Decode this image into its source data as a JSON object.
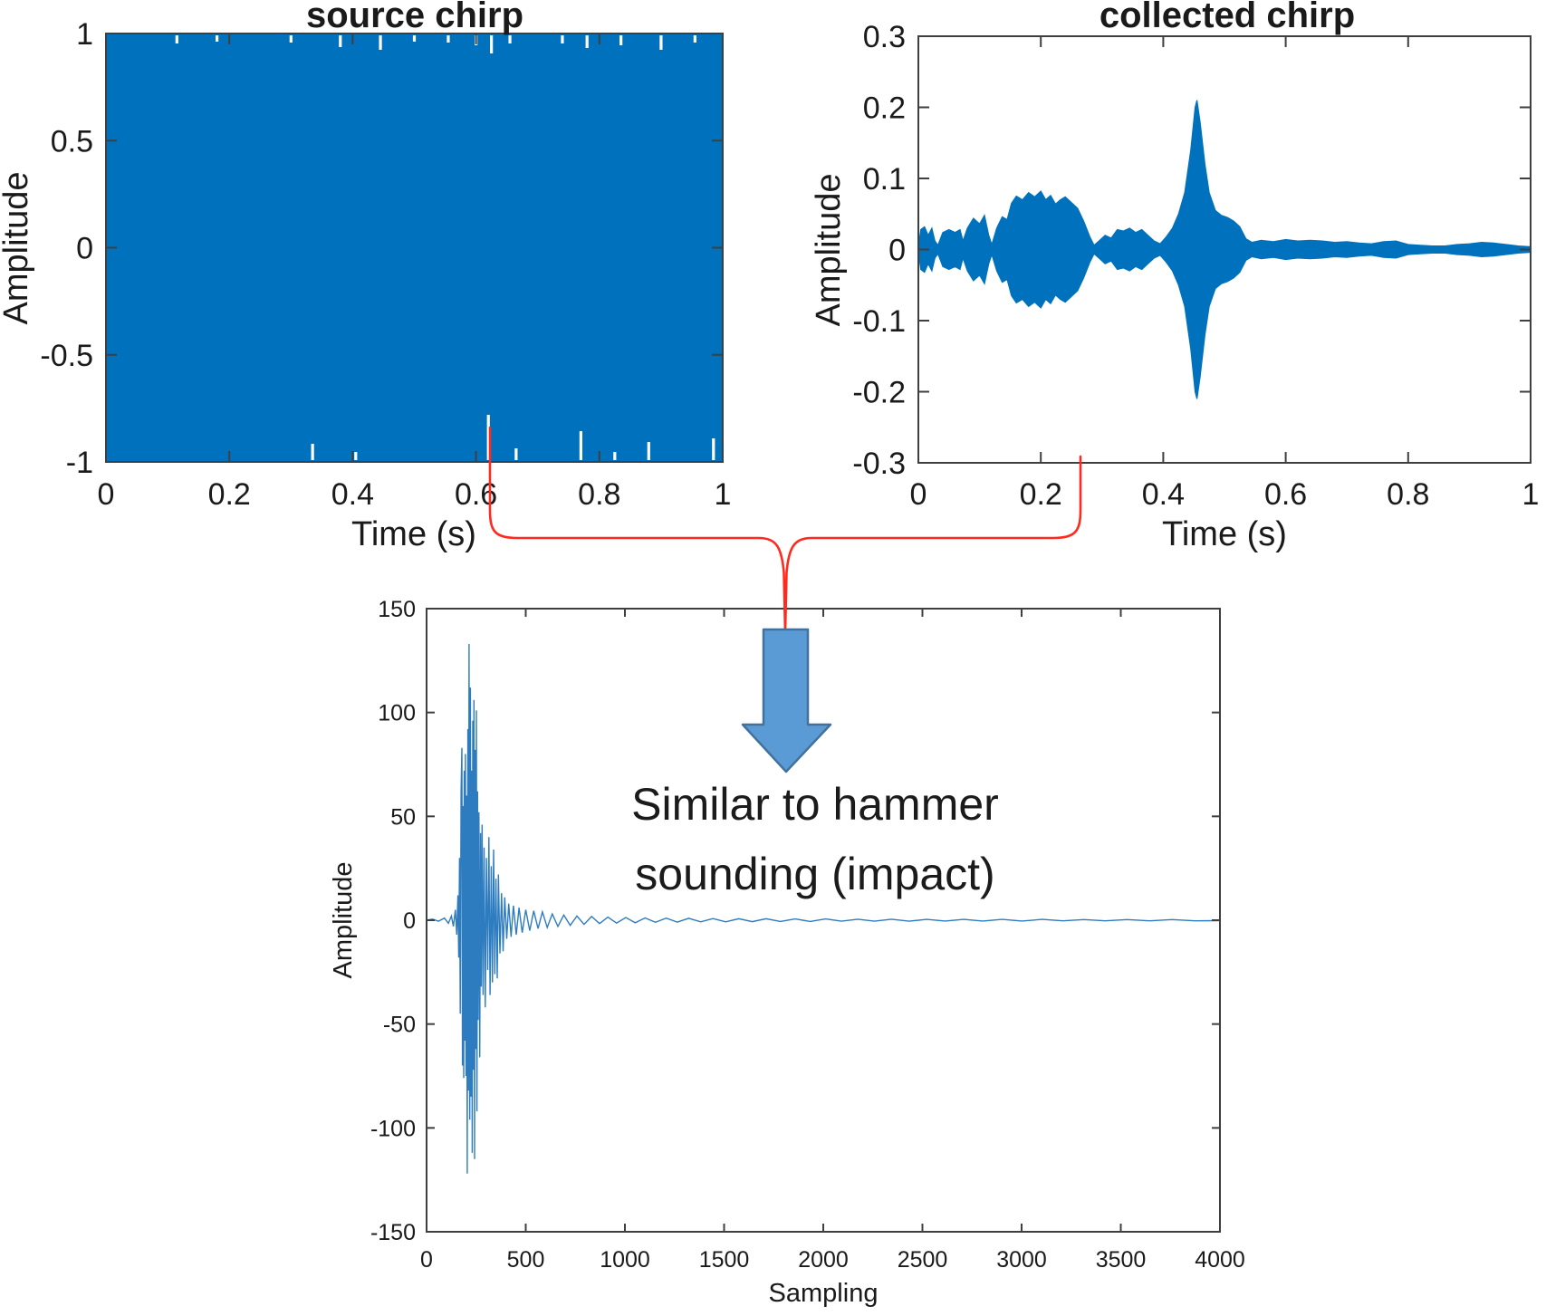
{
  "colors": {
    "series_blue": "#0072BD",
    "impulse_line": "#2E7CC0",
    "axis": "#3F3F3F",
    "connector_red": "#FF2A1F",
    "arrow_fill": "#5B9BD5",
    "arrow_border": "#41719C",
    "text": "#1B1B1B"
  },
  "annotation": {
    "line1": "Similar to hammer",
    "line2": "sounding (impact)"
  },
  "chart_data": [
    {
      "type": "area",
      "title": "source chirp",
      "xlabel": "Time (s)",
      "ylabel": "Amplitude",
      "xlim": [
        0,
        1
      ],
      "ylim": [
        -1,
        1
      ],
      "xticks": [
        0,
        0.2,
        0.4,
        0.6,
        0.8,
        1
      ],
      "xtick_labels": [
        "0",
        "0.2",
        "0.4",
        "0.6",
        "0.8",
        "1"
      ],
      "yticks": [
        1,
        0.5,
        0,
        -0.5,
        -1
      ],
      "ytick_labels": [
        "1",
        "0.5",
        "0",
        "-0.5",
        "-1"
      ],
      "grid": false,
      "note": "1-second dense linear chirp saturating the axes; renders as a solid blue block from -1 to +1 with tiny white drop-out notches",
      "envelope": [
        [
          0,
          1
        ],
        [
          1,
          1
        ]
      ],
      "white_notches_top": [
        [
          0.115,
          9
        ],
        [
          0.18,
          7
        ],
        [
          0.3,
          8
        ],
        [
          0.38,
          13
        ],
        [
          0.445,
          16
        ],
        [
          0.5,
          7
        ],
        [
          0.555,
          8
        ],
        [
          0.6,
          11
        ],
        [
          0.625,
          20
        ],
        [
          0.655,
          9
        ],
        [
          0.74,
          9
        ],
        [
          0.78,
          14
        ],
        [
          0.835,
          11
        ],
        [
          0.9,
          16
        ],
        [
          0.955,
          8
        ]
      ],
      "white_notches_bottom": [
        [
          0.335,
          18
        ],
        [
          0.405,
          9
        ],
        [
          0.62,
          50
        ],
        [
          0.665,
          13
        ],
        [
          0.77,
          32
        ],
        [
          0.825,
          9
        ],
        [
          0.88,
          20
        ],
        [
          0.985,
          24
        ]
      ]
    },
    {
      "type": "area",
      "title": "collected chirp",
      "xlabel": "Time (s)",
      "ylabel": "Amplitude",
      "xlim": [
        0,
        1
      ],
      "ylim": [
        -0.3,
        0.3
      ],
      "xticks": [
        0,
        0.2,
        0.4,
        0.6,
        0.8,
        1
      ],
      "xtick_labels": [
        "0",
        "0.2",
        "0.4",
        "0.6",
        "0.8",
        "1"
      ],
      "yticks": [
        0.3,
        0.2,
        0.1,
        0,
        -0.1,
        -0.2,
        -0.3
      ],
      "ytick_labels": [
        "0.3",
        "0.2",
        "0.1",
        "0",
        "-0.1",
        "-0.2",
        "-0.3"
      ],
      "grid": false,
      "note": "received waveform, symmetric envelope (mirrored about 0); main peak about +/-0.21 near t=0.455 s",
      "envelope": [
        [
          0,
          0.003
        ],
        [
          0.004,
          0.028
        ],
        [
          0.01,
          0.032
        ],
        [
          0.016,
          0.02
        ],
        [
          0.022,
          0.03
        ],
        [
          0.027,
          0.012
        ],
        [
          0.032,
          0.006
        ],
        [
          0.04,
          0.024
        ],
        [
          0.05,
          0.028
        ],
        [
          0.06,
          0.024
        ],
        [
          0.068,
          0.028
        ],
        [
          0.073,
          0.012
        ],
        [
          0.08,
          0.03
        ],
        [
          0.09,
          0.044
        ],
        [
          0.1,
          0.036
        ],
        [
          0.108,
          0.048
        ],
        [
          0.115,
          0.02
        ],
        [
          0.12,
          0.007
        ],
        [
          0.128,
          0.03
        ],
        [
          0.137,
          0.046
        ],
        [
          0.145,
          0.042
        ],
        [
          0.152,
          0.065
        ],
        [
          0.16,
          0.075
        ],
        [
          0.17,
          0.07
        ],
        [
          0.18,
          0.08
        ],
        [
          0.19,
          0.074
        ],
        [
          0.2,
          0.082
        ],
        [
          0.208,
          0.07
        ],
        [
          0.216,
          0.076
        ],
        [
          0.224,
          0.064
        ],
        [
          0.232,
          0.07
        ],
        [
          0.24,
          0.074
        ],
        [
          0.25,
          0.066
        ],
        [
          0.26,
          0.058
        ],
        [
          0.27,
          0.04
        ],
        [
          0.28,
          0.018
        ],
        [
          0.287,
          0.006
        ],
        [
          0.295,
          0.012
        ],
        [
          0.305,
          0.02
        ],
        [
          0.315,
          0.016
        ],
        [
          0.325,
          0.028
        ],
        [
          0.335,
          0.026
        ],
        [
          0.345,
          0.03
        ],
        [
          0.355,
          0.024
        ],
        [
          0.365,
          0.028
        ],
        [
          0.375,
          0.02
        ],
        [
          0.385,
          0.012
        ],
        [
          0.395,
          0.008
        ],
        [
          0.405,
          0.018
        ],
        [
          0.415,
          0.03
        ],
        [
          0.425,
          0.05
        ],
        [
          0.435,
          0.08
        ],
        [
          0.445,
          0.14
        ],
        [
          0.452,
          0.2
        ],
        [
          0.455,
          0.21
        ],
        [
          0.46,
          0.18
        ],
        [
          0.468,
          0.12
        ],
        [
          0.475,
          0.08
        ],
        [
          0.485,
          0.055
        ],
        [
          0.495,
          0.048
        ],
        [
          0.505,
          0.045
        ],
        [
          0.515,
          0.04
        ],
        [
          0.525,
          0.032
        ],
        [
          0.535,
          0.015
        ],
        [
          0.545,
          0.01
        ],
        [
          0.56,
          0.013
        ],
        [
          0.58,
          0.011
        ],
        [
          0.6,
          0.014
        ],
        [
          0.62,
          0.012
        ],
        [
          0.64,
          0.013
        ],
        [
          0.66,
          0.012
        ],
        [
          0.68,
          0.01
        ],
        [
          0.7,
          0.011
        ],
        [
          0.72,
          0.009
        ],
        [
          0.74,
          0.008
        ],
        [
          0.76,
          0.011
        ],
        [
          0.78,
          0.012
        ],
        [
          0.8,
          0.007
        ],
        [
          0.82,
          0.006
        ],
        [
          0.84,
          0.005
        ],
        [
          0.86,
          0.005
        ],
        [
          0.88,
          0.007
        ],
        [
          0.9,
          0.008
        ],
        [
          0.92,
          0.01
        ],
        [
          0.94,
          0.009
        ],
        [
          0.96,
          0.007
        ],
        [
          0.98,
          0.005
        ],
        [
          1,
          0.004
        ]
      ]
    },
    {
      "type": "line",
      "title": "",
      "xlabel": "Sampling",
      "ylabel": "Amplitude",
      "xlim": [
        0,
        4000
      ],
      "ylim": [
        -150,
        150
      ],
      "xticks": [
        0,
        500,
        1000,
        1500,
        2000,
        2500,
        3000,
        3500,
        4000
      ],
      "xtick_labels": [
        "0",
        "500",
        "1000",
        "1500",
        "2000",
        "2500",
        "3000",
        "3500",
        "4000"
      ],
      "yticks": [
        150,
        100,
        50,
        0,
        -50,
        -100,
        -150
      ],
      "ytick_labels": [
        "150",
        "100",
        "50",
        "0",
        "-50",
        "-100",
        "-150"
      ],
      "grid": false,
      "note": "cross-correlation impulse; burst between samples ~150-450, peak +133 near sample 214, minimum about -122, decaying to a flat line by sample 1000",
      "points": [
        [
          0,
          0
        ],
        [
          30,
          0.5
        ],
        [
          60,
          -0.5
        ],
        [
          90,
          1
        ],
        [
          110,
          -1.5
        ],
        [
          125,
          2
        ],
        [
          135,
          -3
        ],
        [
          145,
          5
        ],
        [
          152,
          -7
        ],
        [
          158,
          12
        ],
        [
          162,
          -18
        ],
        [
          166,
          30
        ],
        [
          170,
          -45
        ],
        [
          174,
          62
        ],
        [
          178,
          83
        ],
        [
          181,
          -70
        ],
        [
          184,
          55
        ],
        [
          187,
          -76
        ],
        [
          190,
          72
        ],
        [
          193,
          -58
        ],
        [
          196,
          80
        ],
        [
          199,
          -75
        ],
        [
          202,
          60
        ],
        [
          205,
          -122
        ],
        [
          208,
          92
        ],
        [
          211,
          -82
        ],
        [
          214,
          133
        ],
        [
          218,
          -96
        ],
        [
          221,
          112
        ],
        [
          224,
          -85
        ],
        [
          227,
          72
        ],
        [
          230,
          -112
        ],
        [
          233,
          96
        ],
        [
          236,
          -72
        ],
        [
          239,
          106
        ],
        [
          242,
          -115
        ],
        [
          245,
          82
        ],
        [
          248,
          -62
        ],
        [
          251,
          101
        ],
        [
          254,
          -92
        ],
        [
          257,
          62
        ],
        [
          260,
          -48
        ],
        [
          264,
          52
        ],
        [
          268,
          -66
        ],
        [
          272,
          42
        ],
        [
          276,
          -32
        ],
        [
          280,
          46
        ],
        [
          285,
          -36
        ],
        [
          290,
          35
        ],
        [
          296,
          -42
        ],
        [
          302,
          30
        ],
        [
          308,
          -24
        ],
        [
          314,
          40
        ],
        [
          320,
          -36
        ],
        [
          326,
          26
        ],
        [
          332,
          -30
        ],
        [
          338,
          34
        ],
        [
          344,
          -26
        ],
        [
          350,
          20
        ],
        [
          356,
          -28
        ],
        [
          362,
          22
        ],
        [
          370,
          -16
        ],
        [
          378,
          13
        ],
        [
          386,
          -15
        ],
        [
          394,
          11
        ],
        [
          404,
          -9
        ],
        [
          414,
          8
        ],
        [
          426,
          -8
        ],
        [
          438,
          7
        ],
        [
          452,
          -7
        ],
        [
          466,
          6
        ],
        [
          482,
          -6
        ],
        [
          500,
          5
        ],
        [
          520,
          -5
        ],
        [
          540,
          4.5
        ],
        [
          562,
          -4
        ],
        [
          584,
          4
        ],
        [
          608,
          -3.5
        ],
        [
          634,
          3
        ],
        [
          662,
          -3
        ],
        [
          692,
          2.5
        ],
        [
          724,
          -2.5
        ],
        [
          758,
          2
        ],
        [
          794,
          -2
        ],
        [
          832,
          1.8
        ],
        [
          872,
          -1.6
        ],
        [
          914,
          1.5
        ],
        [
          958,
          -1.4
        ],
        [
          1004,
          1.3
        ],
        [
          1052,
          -1.2
        ],
        [
          1102,
          1.1
        ],
        [
          1154,
          -1
        ],
        [
          1208,
          1
        ],
        [
          1264,
          -0.9
        ],
        [
          1322,
          0.9
        ],
        [
          1382,
          -0.8
        ],
        [
          1444,
          0.8
        ],
        [
          1508,
          -0.8
        ],
        [
          1574,
          0.7
        ],
        [
          1642,
          -0.7
        ],
        [
          1712,
          0.7
        ],
        [
          1784,
          -0.6
        ],
        [
          1858,
          0.6
        ],
        [
          1934,
          -0.6
        ],
        [
          2012,
          0.6
        ],
        [
          2092,
          -0.5
        ],
        [
          2174,
          0.5
        ],
        [
          2258,
          -0.5
        ],
        [
          2344,
          0.5
        ],
        [
          2432,
          -0.5
        ],
        [
          2522,
          0.4
        ],
        [
          2614,
          -0.4
        ],
        [
          2708,
          0.4
        ],
        [
          2804,
          -0.4
        ],
        [
          2902,
          0.4
        ],
        [
          3002,
          -0.4
        ],
        [
          3104,
          0.4
        ],
        [
          3208,
          -0.3
        ],
        [
          3314,
          0.3
        ],
        [
          3422,
          -0.3
        ],
        [
          3532,
          0.3
        ],
        [
          3644,
          -0.3
        ],
        [
          3758,
          0.3
        ],
        [
          3874,
          -0.3
        ],
        [
          3990,
          -0.2
        ],
        [
          4000,
          0
        ]
      ]
    }
  ]
}
